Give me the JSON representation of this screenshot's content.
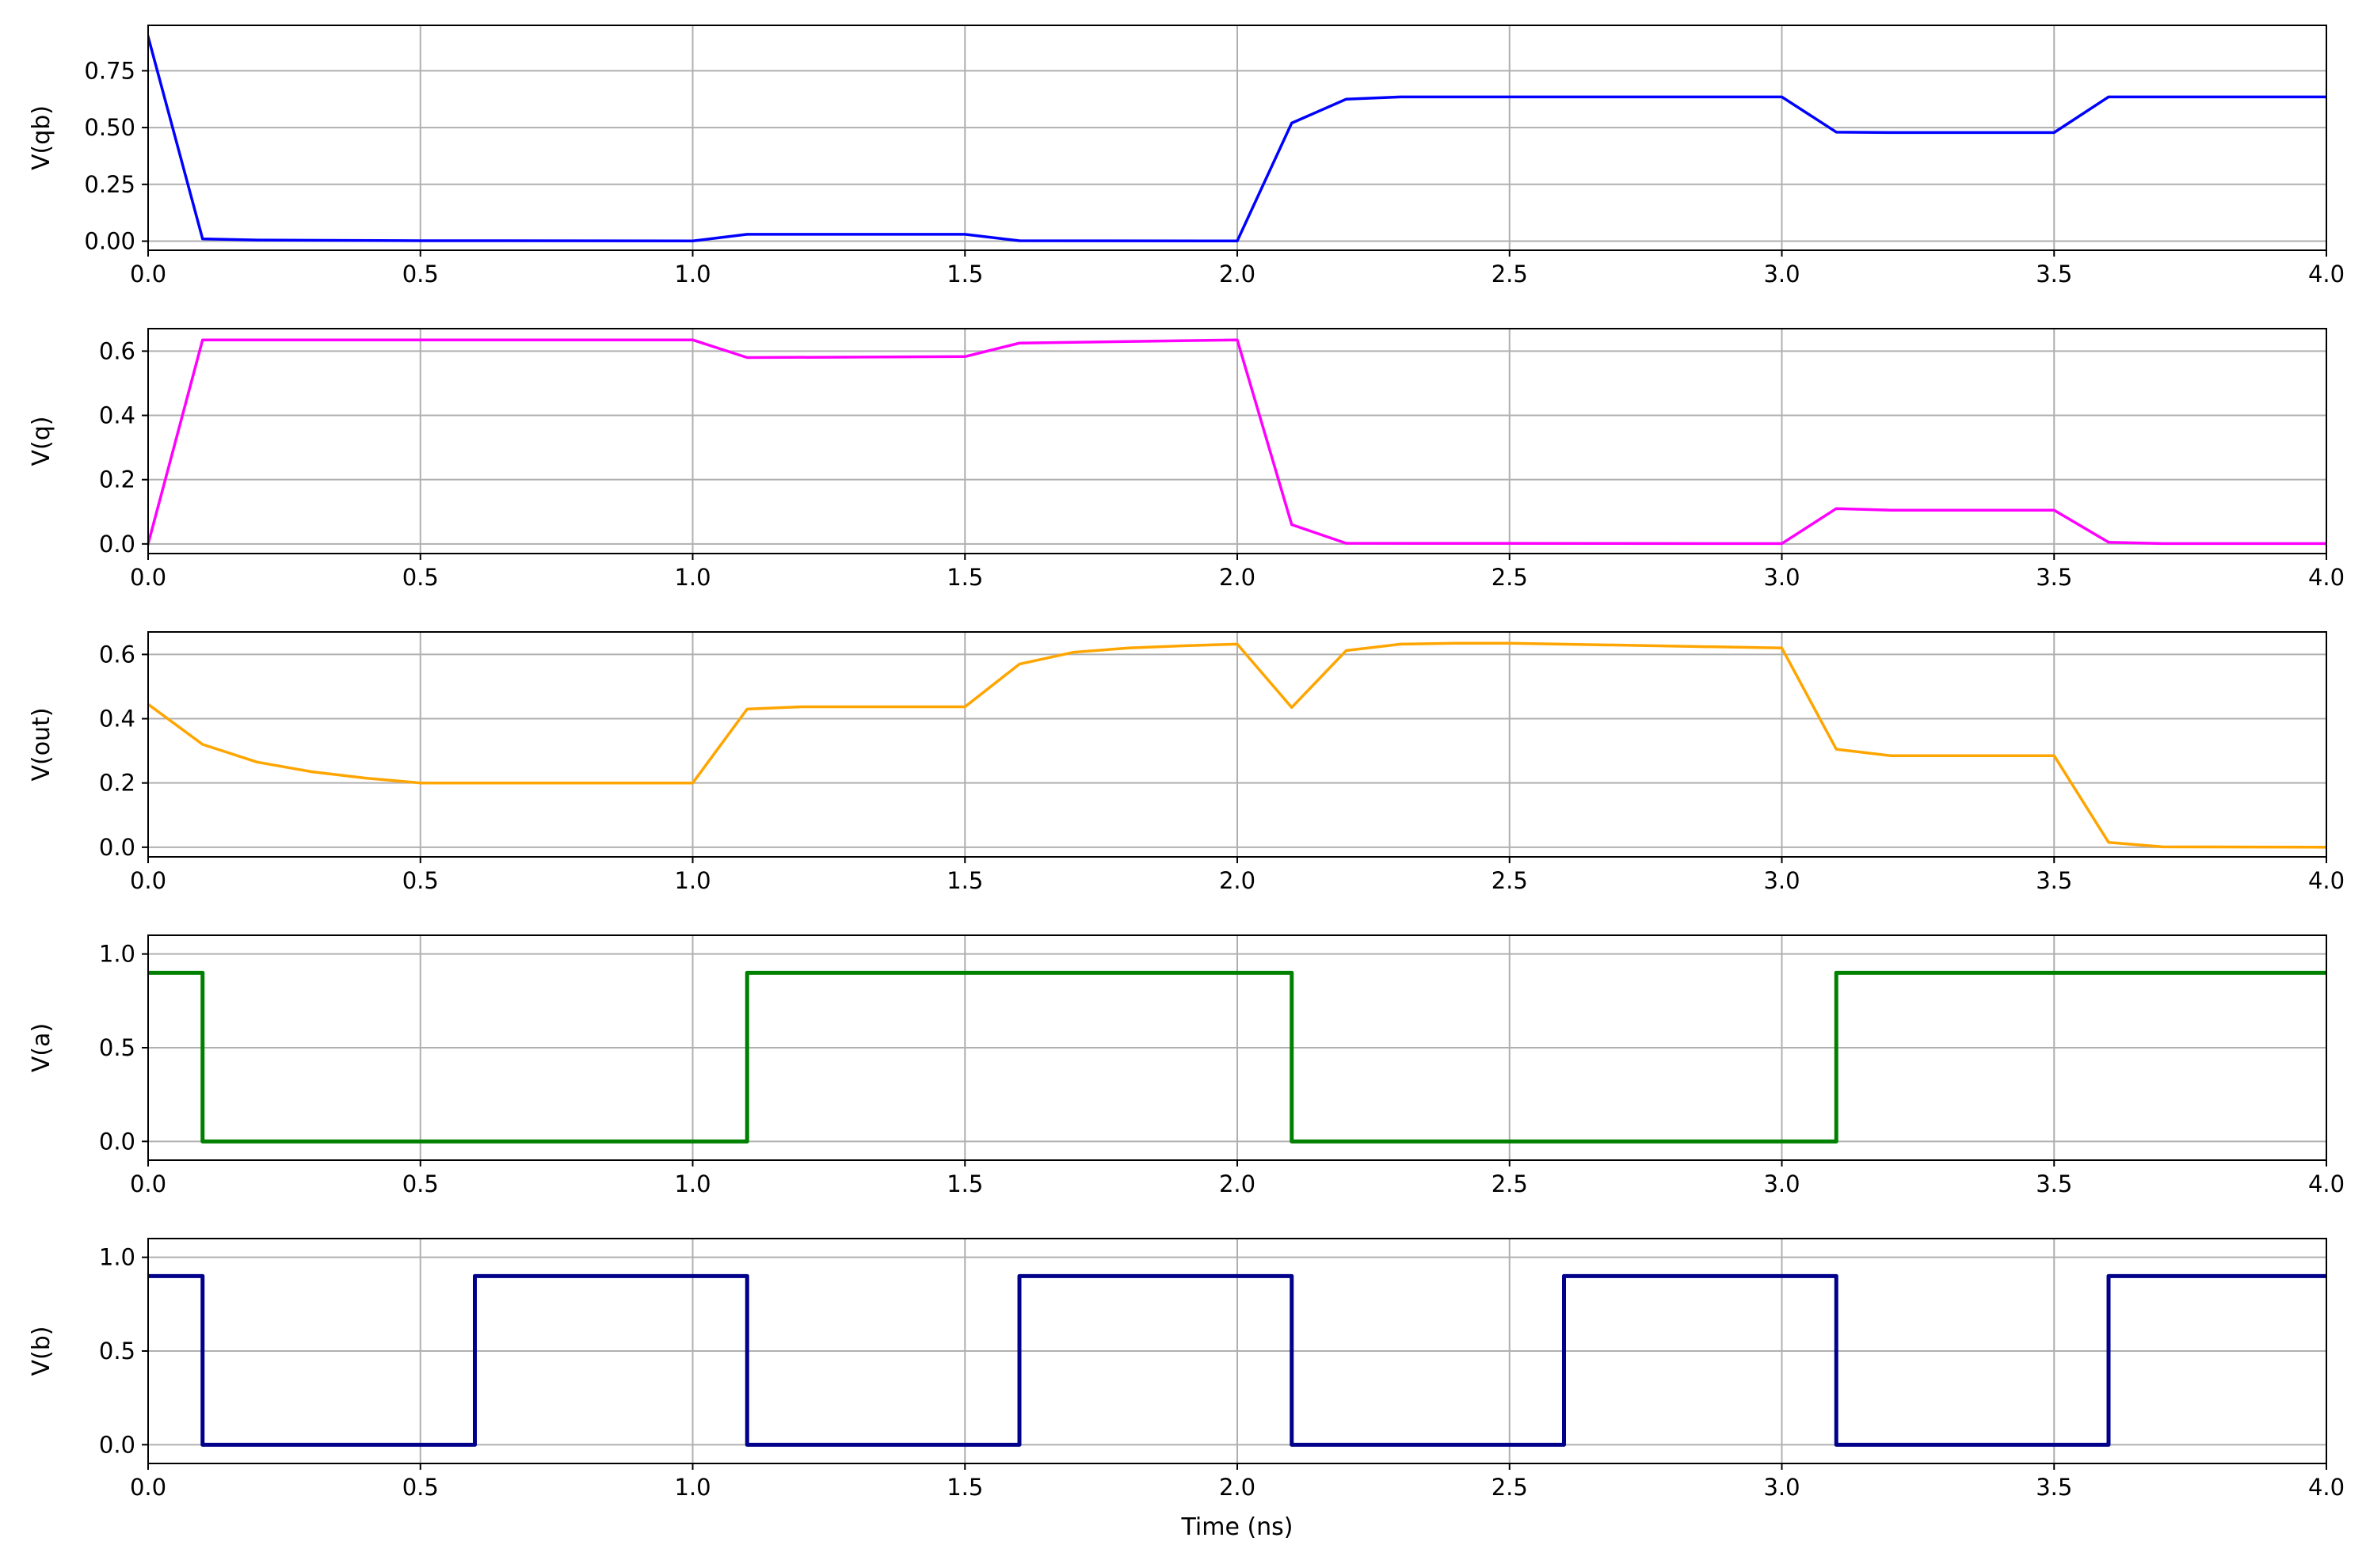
{
  "chart_data": [
    {
      "type": "line",
      "ylabel": "V(qb)",
      "xlabel": "",
      "xlim": [
        0,
        4
      ],
      "ylim": [
        -0.04,
        0.95
      ],
      "xticks": [
        "0.0",
        "0.5",
        "1.0",
        "1.5",
        "2.0",
        "2.5",
        "3.0",
        "3.5",
        "4.0"
      ],
      "yticks": [
        "0.00",
        "0.25",
        "0.50",
        "0.75"
      ],
      "grid": true,
      "color": "#0000ff",
      "series": [
        {
          "x": [
            0.0,
            0.1,
            0.2,
            0.5,
            1.0,
            1.1,
            1.5,
            1.6,
            2.0,
            2.1,
            2.2,
            2.3,
            3.0,
            3.1,
            3.2,
            3.5,
            3.6,
            4.0
          ],
          "y": [
            0.9,
            0.01,
            0.005,
            0.002,
            0.001,
            0.03,
            0.03,
            0.002,
            0.001,
            0.52,
            0.625,
            0.635,
            0.635,
            0.48,
            0.478,
            0.478,
            0.635,
            0.635
          ]
        }
      ]
    },
    {
      "type": "line",
      "ylabel": "V(q)",
      "xlabel": "",
      "xlim": [
        0,
        4
      ],
      "ylim": [
        -0.03,
        0.67
      ],
      "xticks": [
        "0.0",
        "0.5",
        "1.0",
        "1.5",
        "2.0",
        "2.5",
        "3.0",
        "3.5",
        "4.0"
      ],
      "yticks": [
        "0.0",
        "0.2",
        "0.4",
        "0.6"
      ],
      "grid": true,
      "color": "#ff00ff",
      "series": [
        {
          "x": [
            0.0,
            0.1,
            1.0,
            1.1,
            1.5,
            1.6,
            2.0,
            2.1,
            2.2,
            3.0,
            3.1,
            3.2,
            3.5,
            3.6,
            3.7,
            4.0
          ],
          "y": [
            0.0,
            0.635,
            0.635,
            0.58,
            0.583,
            0.625,
            0.635,
            0.06,
            0.002,
            0.001,
            0.11,
            0.105,
            0.105,
            0.005,
            0.001,
            0.001
          ]
        }
      ]
    },
    {
      "type": "line",
      "ylabel": "V(out)",
      "xlabel": "",
      "xlim": [
        0,
        4
      ],
      "ylim": [
        -0.03,
        0.67
      ],
      "xticks": [
        "0.0",
        "0.5",
        "1.0",
        "1.5",
        "2.0",
        "2.5",
        "3.0",
        "3.5",
        "4.0"
      ],
      "yticks": [
        "0.0",
        "0.2",
        "0.4",
        "0.6"
      ],
      "grid": true,
      "color": "#ffa500",
      "series": [
        {
          "x": [
            0.0,
            0.1,
            0.2,
            0.3,
            0.4,
            0.5,
            1.0,
            1.1,
            1.2,
            1.5,
            1.6,
            1.7,
            1.8,
            1.9,
            2.0,
            2.1,
            2.2,
            2.3,
            2.4,
            2.5,
            3.0,
            3.1,
            3.2,
            3.5,
            3.6,
            3.7,
            4.0
          ],
          "y": [
            0.445,
            0.32,
            0.265,
            0.235,
            0.215,
            0.2,
            0.2,
            0.43,
            0.437,
            0.437,
            0.57,
            0.607,
            0.62,
            0.627,
            0.632,
            0.435,
            0.612,
            0.632,
            0.635,
            0.635,
            0.62,
            0.305,
            0.285,
            0.285,
            0.015,
            0.001,
            0.0
          ]
        }
      ]
    },
    {
      "type": "line",
      "ylabel": "V(a)",
      "xlabel": "",
      "xlim": [
        0,
        4
      ],
      "ylim": [
        -0.1,
        1.1
      ],
      "xticks": [
        "0.0",
        "0.5",
        "1.0",
        "1.5",
        "2.0",
        "2.5",
        "3.0",
        "3.5",
        "4.0"
      ],
      "yticks": [
        "0.0",
        "0.5",
        "1.0"
      ],
      "grid": true,
      "color": "#008000",
      "series": [
        {
          "x": [
            0.0,
            0.1,
            0.1,
            1.1,
            1.1,
            2.1,
            2.1,
            3.1,
            3.1,
            4.0
          ],
          "y": [
            0.9,
            0.9,
            0.0,
            0.0,
            0.9,
            0.9,
            0.0,
            0.0,
            0.9,
            0.9
          ]
        }
      ]
    },
    {
      "type": "line",
      "ylabel": "V(b)",
      "xlabel": "Time (ns)",
      "xlim": [
        0,
        4
      ],
      "ylim": [
        -0.1,
        1.1
      ],
      "xticks": [
        "0.0",
        "0.5",
        "1.0",
        "1.5",
        "2.0",
        "2.5",
        "3.0",
        "3.5",
        "4.0"
      ],
      "yticks": [
        "0.0",
        "0.5",
        "1.0"
      ],
      "grid": true,
      "color": "#00008b",
      "series": [
        {
          "x": [
            0.0,
            0.1,
            0.1,
            0.6,
            0.6,
            1.1,
            1.1,
            1.6,
            1.6,
            2.1,
            2.1,
            2.6,
            2.6,
            3.1,
            3.1,
            3.6,
            3.6,
            4.0
          ],
          "y": [
            0.9,
            0.9,
            0.0,
            0.0,
            0.9,
            0.9,
            0.0,
            0.0,
            0.9,
            0.9,
            0.0,
            0.0,
            0.9,
            0.9,
            0.0,
            0.0,
            0.9,
            0.9
          ]
        }
      ]
    }
  ]
}
